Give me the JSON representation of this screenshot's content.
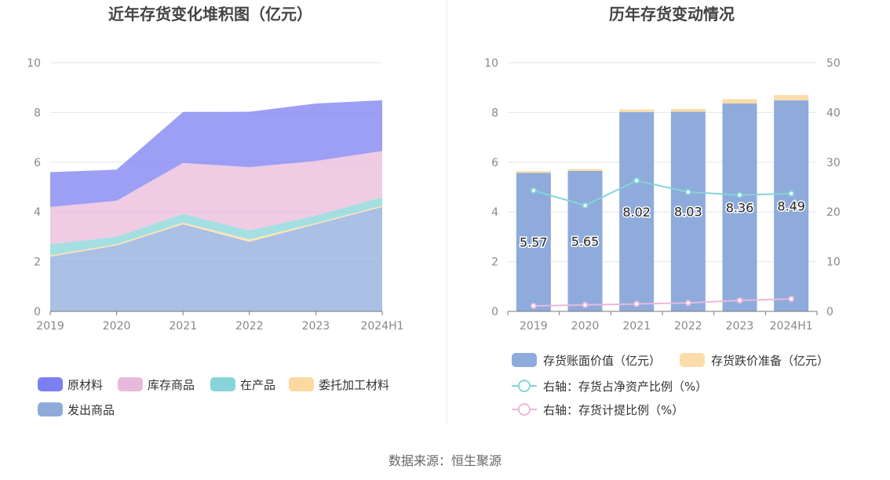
{
  "source_text": "数据来源：恒生聚源",
  "chart_data": [
    {
      "type": "area",
      "stacked": true,
      "title": "近年存货变化堆积图（亿元）",
      "categories": [
        "2019",
        "2020",
        "2021",
        "2022",
        "2023",
        "2024H1"
      ],
      "ylim": [
        0,
        10
      ],
      "yticks": [
        "0",
        "2",
        "4",
        "6",
        "8",
        "10"
      ],
      "grid": true,
      "legend_position": "bottom",
      "series": [
        {
          "name": "发出商品",
          "color": "#8eabdb",
          "values": [
            2.2,
            2.65,
            3.5,
            2.8,
            3.5,
            4.2
          ]
        },
        {
          "name": "委托加工材料",
          "color": "#fcd9a0",
          "values": [
            0.05,
            0.05,
            0.07,
            0.1,
            0.05,
            0.05
          ]
        },
        {
          "name": "在产品",
          "color": "#86d4d8",
          "values": [
            0.45,
            0.3,
            0.35,
            0.35,
            0.3,
            0.35
          ]
        },
        {
          "name": "库存商品",
          "color": "#e9b9db",
          "values": [
            1.5,
            1.45,
            2.05,
            2.55,
            2.2,
            1.85
          ]
        },
        {
          "name": "原材料",
          "color": "#7b7ff0",
          "values": [
            1.4,
            1.25,
            2.05,
            2.23,
            2.31,
            2.04
          ]
        }
      ],
      "legend_order": [
        "原材料",
        "库存商品",
        "在产品",
        "委托加工材料",
        "发出商品"
      ]
    },
    {
      "type": "bar",
      "title": "历年存货变动情况",
      "categories": [
        "2019",
        "2020",
        "2021",
        "2022",
        "2023",
        "2024H1"
      ],
      "ylim": [
        0,
        10
      ],
      "yticks": [
        "0",
        "2",
        "4",
        "6",
        "8",
        "10"
      ],
      "y2lim": [
        0,
        50
      ],
      "y2ticks": [
        "0",
        "10",
        "20",
        "30",
        "40",
        "50"
      ],
      "grid": true,
      "legend_position": "bottom",
      "bar_series": [
        {
          "name": "存货账面价值（亿元）",
          "color": "#8eabdb",
          "values": [
            5.57,
            5.65,
            8.02,
            8.03,
            8.36,
            8.49
          ],
          "labels": [
            "5.57",
            "5.65",
            "8.02",
            "8.03",
            "8.36",
            "8.49"
          ]
        },
        {
          "name": "存货跌价准备（亿元）",
          "color": "#fcdca8",
          "values": [
            0.07,
            0.07,
            0.1,
            0.11,
            0.18,
            0.21
          ]
        }
      ],
      "line_series": [
        {
          "name": "右轴：存货占净资产比例（%）",
          "color": "#86d4d8",
          "axis": "right",
          "values": [
            24.3,
            21.3,
            26.3,
            24.0,
            23.4,
            23.7
          ]
        },
        {
          "name": "右轴：存货计提比例（%）",
          "color": "#e9b9db",
          "axis": "right",
          "values": [
            1.1,
            1.3,
            1.5,
            1.7,
            2.2,
            2.5
          ]
        }
      ]
    }
  ]
}
